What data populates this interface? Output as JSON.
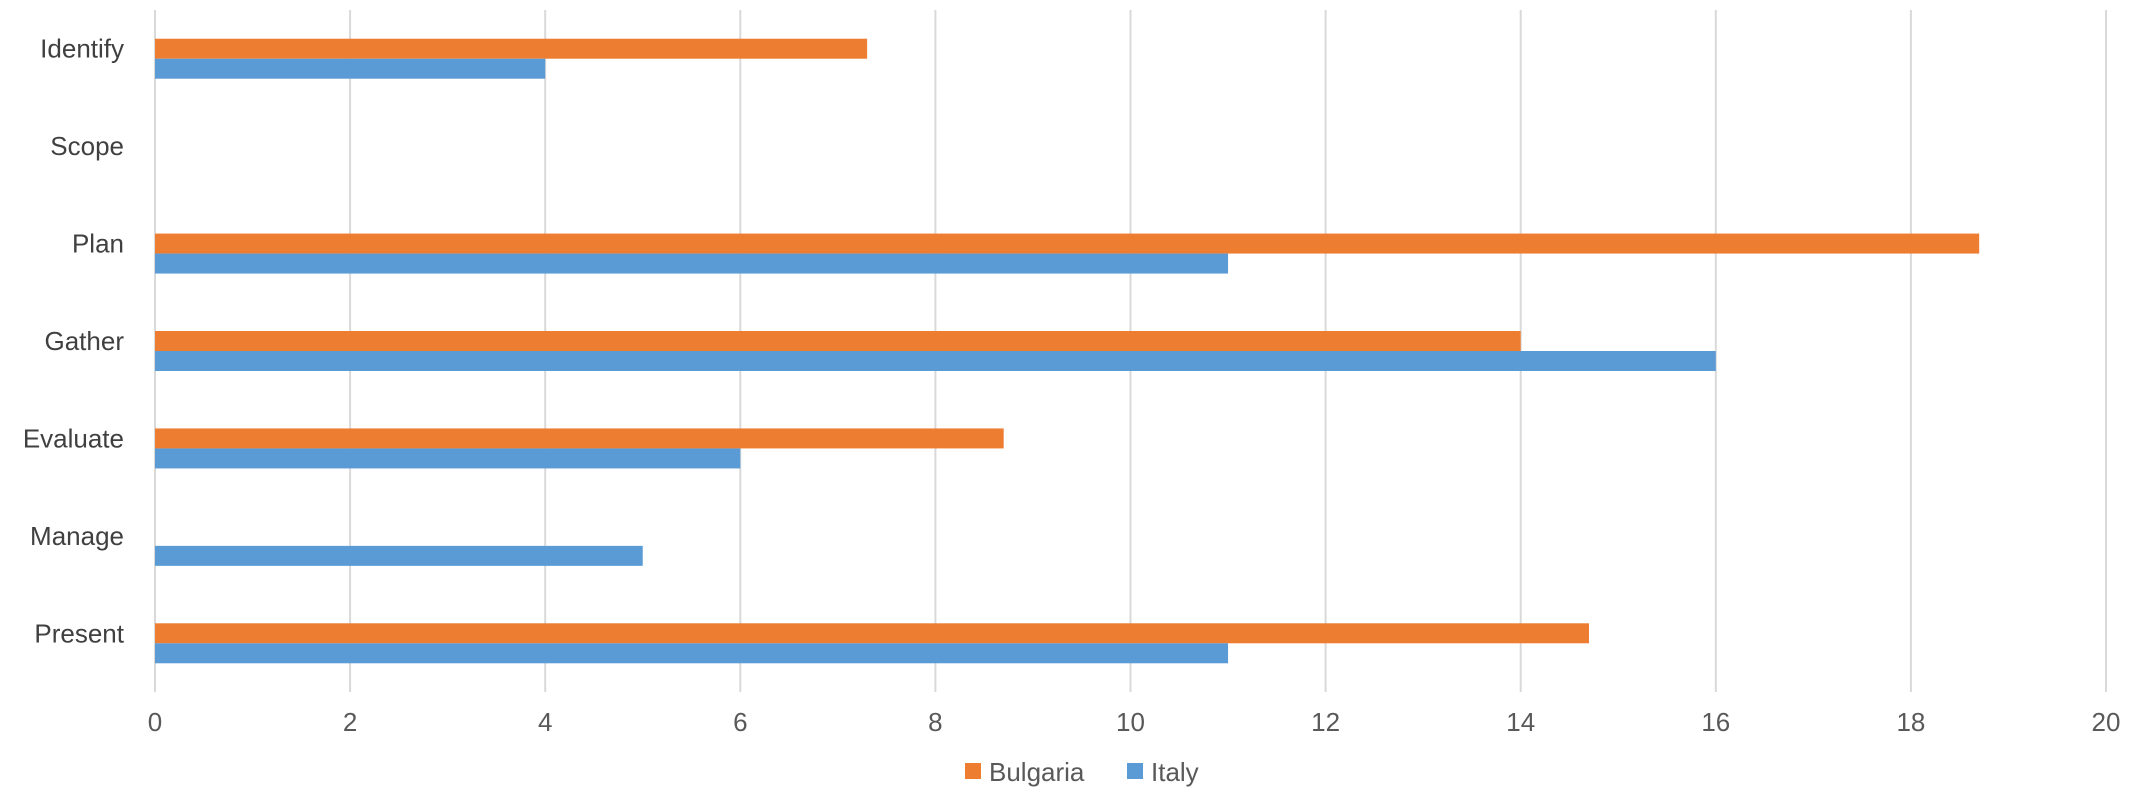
{
  "chart_data": {
    "type": "bar",
    "orientation": "horizontal",
    "title": "",
    "xlabel": "",
    "ylabel": "",
    "categories": [
      "Identify",
      "Scope",
      "Plan",
      "Gather",
      "Evaluate",
      "Manage",
      "Present"
    ],
    "series": [
      {
        "name": "Bulgaria",
        "color": "#ED7D31",
        "values": [
          7.3,
          0,
          18.7,
          14,
          8.7,
          0,
          14.7
        ]
      },
      {
        "name": "Italy",
        "color": "#5B9BD5",
        "values": [
          4,
          0,
          11,
          16,
          6,
          5,
          11
        ]
      }
    ],
    "xlim": [
      0,
      20
    ],
    "xticks": [
      "0",
      "2",
      "4",
      "6",
      "8",
      "10",
      "12",
      "14",
      "16",
      "18",
      "20"
    ],
    "grid": "vertical",
    "legend_position": "bottom"
  }
}
